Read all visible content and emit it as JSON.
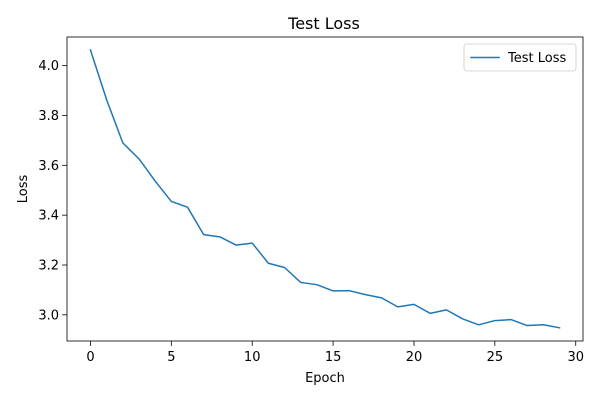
{
  "chart_data": {
    "type": "line",
    "title": "Test Loss",
    "xlabel": "Epoch",
    "ylabel": "Loss",
    "xlim": [
      -1.45,
      30.45
    ],
    "ylim": [
      2.895,
      4.115
    ],
    "grid": false,
    "legend_position": "top-right",
    "x_ticks": [
      0,
      5,
      10,
      15,
      20,
      25,
      30
    ],
    "y_ticks": [
      3.0,
      3.2,
      3.4,
      3.6,
      3.8,
      4.0
    ],
    "x_tick_labels": [
      "0",
      "5",
      "10",
      "15",
      "20",
      "25",
      "30"
    ],
    "y_tick_labels": [
      "3.0",
      "3.2",
      "3.4",
      "3.6",
      "3.8",
      "4.0"
    ],
    "series": [
      {
        "name": "Test Loss",
        "color": "#1f77b4",
        "x": [
          0,
          1,
          2,
          3,
          4,
          5,
          6,
          7,
          8,
          9,
          10,
          11,
          12,
          13,
          14,
          15,
          16,
          17,
          18,
          19,
          20,
          21,
          22,
          23,
          24,
          25,
          26,
          27,
          28,
          29
        ],
        "values": [
          4.063,
          3.863,
          3.69,
          3.626,
          3.537,
          3.455,
          3.432,
          3.322,
          3.313,
          3.28,
          3.288,
          3.207,
          3.19,
          3.13,
          3.121,
          3.096,
          3.097,
          3.081,
          3.068,
          3.032,
          3.042,
          3.006,
          3.02,
          2.984,
          2.96,
          2.977,
          2.981,
          2.957,
          2.96,
          2.948
        ]
      }
    ]
  }
}
